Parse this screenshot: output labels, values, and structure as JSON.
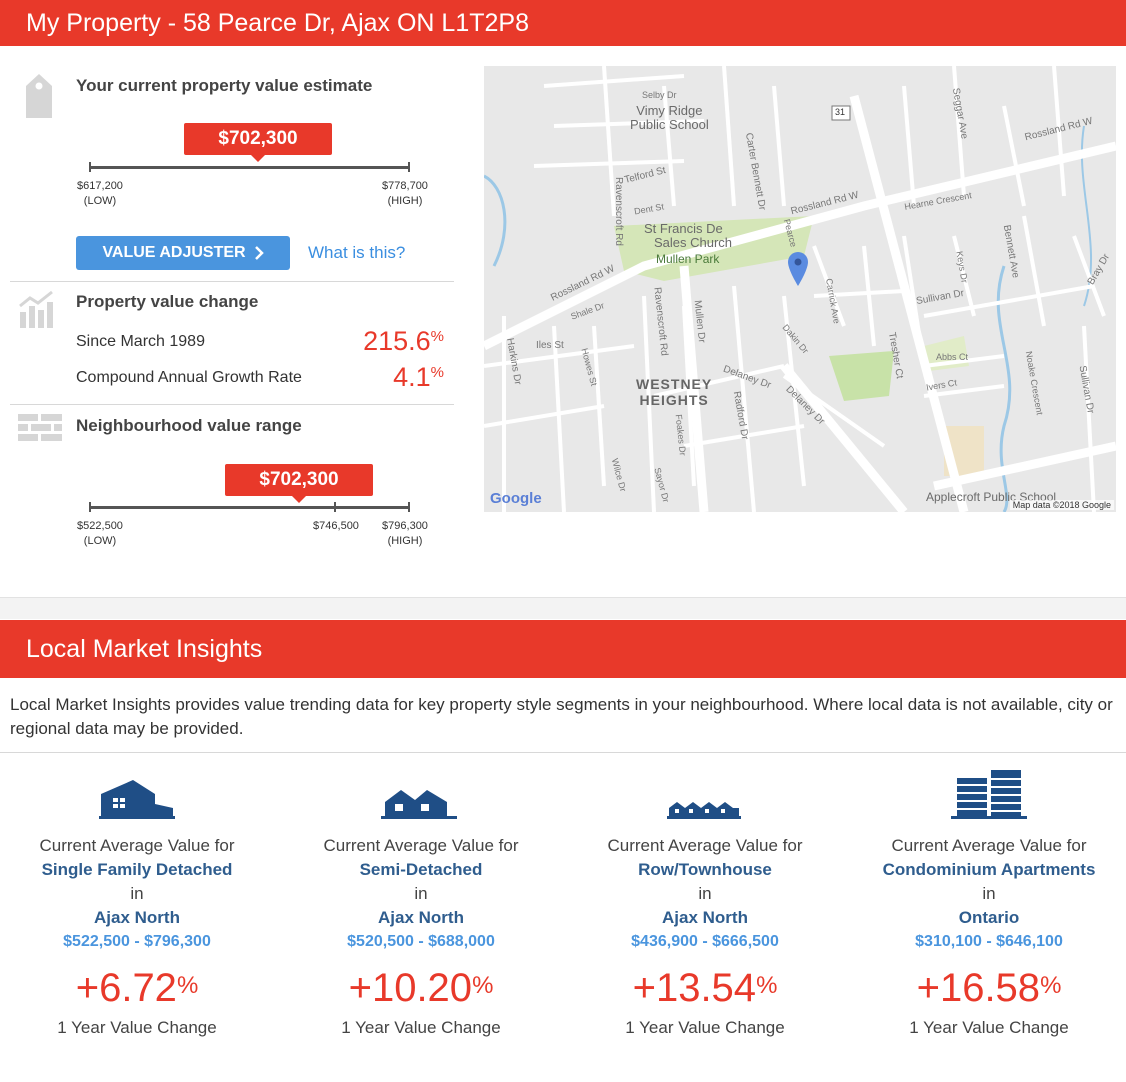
{
  "header": {
    "title": "My Property - 58 Pearce Dr, Ajax ON L1T2P8"
  },
  "estimate": {
    "title": "Your current property value estimate",
    "value": "$702,300",
    "low": "$617,200",
    "low_tag": "(LOW)",
    "high": "$778,700",
    "high_tag": "(HIGH)",
    "position_fraction": 0.53
  },
  "adjuster": {
    "button_label": "VALUE ADJUSTER",
    "link_label": "What is this?"
  },
  "change": {
    "title": "Property value change",
    "since_label": "Since March 1989",
    "since_value": "215.6",
    "cagr_label": "Compound Annual Growth Rate",
    "cagr_value": "4.1",
    "pct": "%"
  },
  "neighbourhood": {
    "title": "Neighbourhood value range",
    "value": "$702,300",
    "low": "$522,500",
    "low_tag": "(LOW)",
    "mid": "$746,500",
    "high": "$796,300",
    "high_tag": "(HIGH)",
    "position_fraction": 0.66
  },
  "map": {
    "labels": {
      "vimy": "Vimy Ridge",
      "vimy2": "Public School",
      "selby": "Selby Dr",
      "telford": "Telford St",
      "ravenscroft": "Ravenscroft Rd",
      "carter": "Carter Bennett Dr",
      "rossland": "Rossland Rd W",
      "rossland2": "Rossland Rd W",
      "rossland3": "Rossland Rd W",
      "seggar": "Seggar Ave",
      "stfrancis": "St Francis De",
      "stfrancis2": "Sales Church",
      "mullen_park": "Mullen Park",
      "dent": "Dent St",
      "hearne": "Hearne Crescent",
      "bennett": "Bennett Ave",
      "keys": "Keys Dr",
      "sullivan": "Sullivan Dr",
      "bray": "Bray Dr",
      "shale": "Shale Dr",
      "iles": "Iles St",
      "howes": "Howes St",
      "harkins": "Harkins Dr",
      "mullen": "Mullen Dr",
      "carrick": "Carrick Ave",
      "dakin": "Dakin Dr",
      "westney": "WESTNEY",
      "heights": "HEIGHTS",
      "delaney": "Delaney Dr",
      "delaney2": "Delaney Dr",
      "radford": "Radford Dr",
      "foakes": "Foakes Dr",
      "wilce": "Wilce Dr",
      "sayor": "Sayor Dr",
      "tresher": "Tresher Ct",
      "abbs": "Abbs Ct",
      "ivers": "Ivers Ct",
      "noake": "Noake Crescent",
      "sullivan2": "Sullivan Dr",
      "pearce": "Pearce",
      "applecroft": "Applecroft Public School",
      "highway": "31",
      "google": "Google",
      "attribution": "Map data ©2018 Google"
    }
  },
  "insights": {
    "title": "Local Market Insights",
    "intro": "Local Market Insights provides value trending data for key property style segments in your neighbourhood. Where local data is not available, city or regional data may be provided.",
    "cards": [
      {
        "label": "Current Average Value for",
        "segment": "Single Family Detached",
        "in": "in",
        "area": "Ajax North",
        "range": "$522,500 - $796,300",
        "change": "+6.72",
        "pct": "%",
        "footer": "1 Year Value Change",
        "icon": "house-icon"
      },
      {
        "label": "Current Average Value for",
        "segment": "Semi-Detached",
        "in": "in",
        "area": "Ajax North",
        "range": "$520,500 - $688,000",
        "change": "+10.20",
        "pct": "%",
        "footer": "1 Year Value Change",
        "icon": "semi-detached-icon"
      },
      {
        "label": "Current Average Value for",
        "segment": "Row/Townhouse",
        "in": "in",
        "area": "Ajax North",
        "range": "$436,900 - $666,500",
        "change": "+13.54",
        "pct": "%",
        "footer": "1 Year Value Change",
        "icon": "townhouse-icon"
      },
      {
        "label": "Current Average Value for",
        "segment": "Condominium Apartments",
        "in": "in",
        "area": "Ontario",
        "range": "$310,100 - $646,100",
        "change": "+16.58",
        "pct": "%",
        "footer": "1 Year Value Change",
        "icon": "condo-icon"
      }
    ]
  },
  "colors": {
    "accent": "#e8392a",
    "button": "#4a95de",
    "navy": "#2f5d8e"
  }
}
